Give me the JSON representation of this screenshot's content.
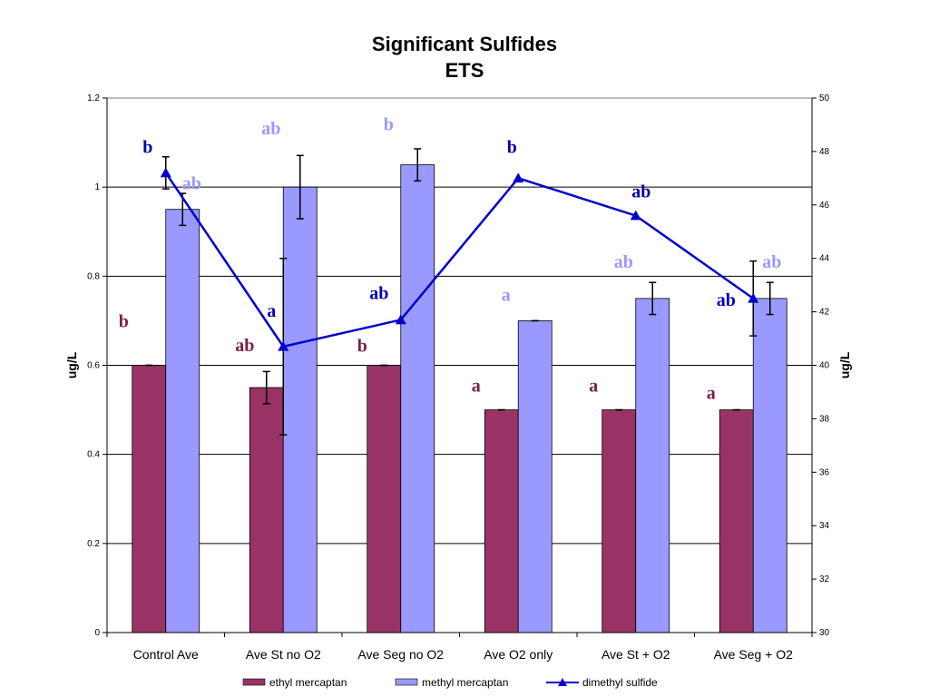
{
  "chart_data": {
    "type": "bar",
    "title": "Significant Sulfides",
    "subtitle": "ETS",
    "categories": [
      "Control Ave",
      "Ave St no O2",
      "Ave Seg no O2",
      "Ave O2 only",
      "Ave St + O2",
      "Ave Seg + O2"
    ],
    "ylabel": "ug/L",
    "y2label": "ug/L",
    "ylim": [
      0,
      1.2
    ],
    "y2lim": [
      30,
      50
    ],
    "yticks": [
      "0",
      "0.2",
      "0.4",
      "0.6",
      "0.8",
      "1",
      "1.2"
    ],
    "y2ticks": [
      "30",
      "32",
      "34",
      "36",
      "38",
      "40",
      "42",
      "44",
      "46",
      "48",
      "50"
    ],
    "grid": true,
    "legend_position": "bottom",
    "series": [
      {
        "name": "ethyl mercaptan",
        "type": "bar",
        "axis": "left",
        "color": "#993366",
        "values": [
          0.6,
          0.55,
          0.6,
          0.5,
          0.5,
          0.5
        ],
        "error": [
          0,
          0.036,
          0,
          0,
          0,
          0
        ],
        "sig_labels": [
          "b",
          "ab",
          "b",
          "a",
          "a",
          "a"
        ]
      },
      {
        "name": "methyl mercaptan",
        "type": "bar",
        "axis": "left",
        "color": "#9999FF",
        "values": [
          0.95,
          1.0,
          1.05,
          0.7,
          0.75,
          0.75
        ],
        "error": [
          0.036,
          0.071,
          0.036,
          0,
          0.036,
          0.036
        ],
        "sig_labels": [
          "ab",
          "ab",
          "b",
          "a",
          "ab",
          "ab"
        ]
      },
      {
        "name": "dimethyl sulfide",
        "type": "line",
        "axis": "right",
        "color": "#0000CC",
        "values": [
          47.2,
          40.7,
          41.7,
          47.0,
          45.6,
          42.5
        ],
        "error": [
          0.6,
          3.3,
          0,
          0,
          0,
          1.4
        ],
        "sig_labels": [
          "b",
          "a",
          "ab",
          "b",
          "ab",
          "ab"
        ]
      }
    ]
  }
}
